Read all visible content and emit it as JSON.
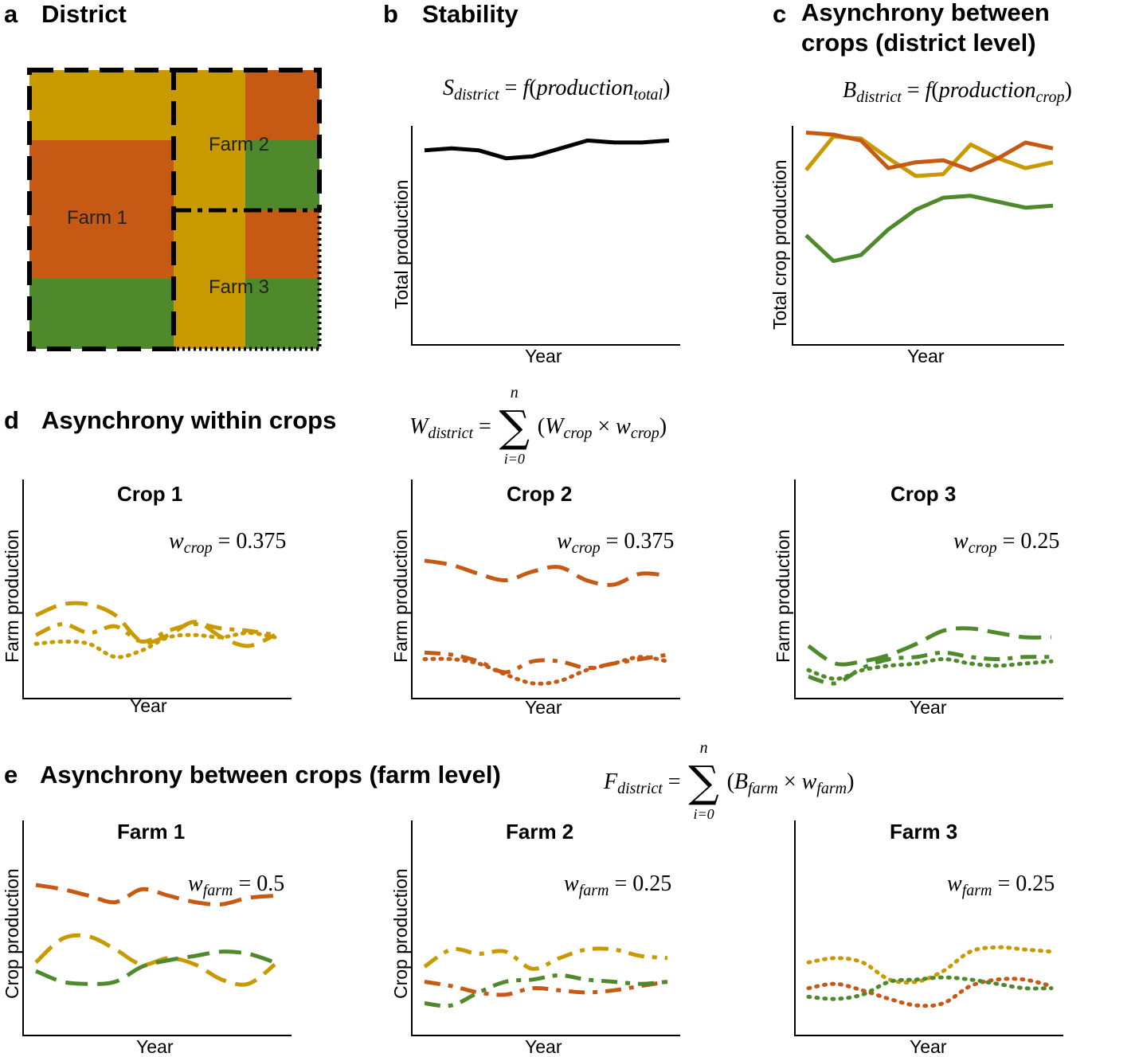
{
  "colors": {
    "crop1": "#C99A00",
    "crop2": "#C65A15",
    "crop3": "#4E8A2C",
    "total": "#000000"
  },
  "panel_a": {
    "letter": "a",
    "title": "District",
    "farms": [
      "Farm 1",
      "Farm 2",
      "Farm 3"
    ]
  },
  "panel_b": {
    "letter": "b",
    "title": "Stability",
    "formula_lhs": "S",
    "formula_lhs_sub": "district",
    "formula_rhs_f": "f",
    "formula_rhs_arg": "production",
    "formula_rhs_arg_sub": "total",
    "xlabel": "Year",
    "ylabel": "Total production"
  },
  "panel_c": {
    "letter": "c",
    "title_line1": "Asynchrony between",
    "title_line2": "crops (district level)",
    "formula_lhs": "B",
    "formula_lhs_sub": "district",
    "formula_rhs_f": "f",
    "formula_rhs_arg": "production",
    "formula_rhs_arg_sub": "crop",
    "xlabel": "Year",
    "ylabel": "Total crop production"
  },
  "panel_d": {
    "letter": "d",
    "title": "Asynchrony within crops",
    "formula_lhs": "W",
    "formula_lhs_sub": "district",
    "sum_top": "n",
    "sum_bottom": "i=0",
    "term_a": "W",
    "term_a_sub": "crop",
    "term_b": "w",
    "term_b_sub": "crop",
    "subplots": [
      {
        "title": "Crop 1",
        "weight_symbol": "w",
        "weight_sub": "crop",
        "weight_value": "0.375",
        "xlabel": "Year",
        "ylabel": "Farm production"
      },
      {
        "title": "Crop 2",
        "weight_symbol": "w",
        "weight_sub": "crop",
        "weight_value": "0.375",
        "xlabel": "Year",
        "ylabel": "Farm production"
      },
      {
        "title": "Crop 3",
        "weight_symbol": "w",
        "weight_sub": "crop",
        "weight_value": "0.25",
        "xlabel": "Year",
        "ylabel": "Farm production"
      }
    ]
  },
  "panel_e": {
    "letter": "e",
    "title": "Asynchrony between crops (farm level)",
    "formula_lhs": "F",
    "formula_lhs_sub": "district",
    "sum_top": "n",
    "sum_bottom": "i=0",
    "term_a": "B",
    "term_a_sub": "farm",
    "term_b": "w",
    "term_b_sub": "farm",
    "subplots": [
      {
        "title": "Farm 1",
        "weight_symbol": "w",
        "weight_sub": "farm",
        "weight_value": "0.5",
        "xlabel": "Year",
        "ylabel": "Crop production"
      },
      {
        "title": "Farm 2",
        "weight_symbol": "w",
        "weight_sub": "farm",
        "weight_value": "0.25",
        "xlabel": "Year",
        "ylabel": "Crop production"
      },
      {
        "title": "Farm 3",
        "weight_symbol": "w",
        "weight_sub": "farm",
        "weight_value": "0.25",
        "xlabel": "Year",
        "ylabel": "Crop production"
      }
    ]
  },
  "chart_data": [
    {
      "type": "line",
      "panel": "b",
      "xlabel": "Year",
      "ylabel": "Total production",
      "ylim": [
        0,
        100
      ],
      "x": [
        1,
        2,
        3,
        4,
        5,
        6,
        7,
        8,
        9,
        10
      ],
      "series": [
        {
          "color": "total",
          "style": "solid",
          "values": [
            90,
            91,
            90,
            86,
            87,
            91,
            95,
            94,
            94,
            95
          ]
        }
      ]
    },
    {
      "type": "line",
      "panel": "c",
      "xlabel": "Year",
      "ylabel": "Total crop production",
      "ylim": [
        0,
        100
      ],
      "x": [
        1,
        2,
        3,
        4,
        5,
        6,
        7,
        8,
        9,
        10
      ],
      "series": [
        {
          "color": "crop1",
          "style": "solid",
          "values": [
            80,
            97,
            96,
            86,
            77,
            78,
            93,
            86,
            81,
            84
          ]
        },
        {
          "color": "crop2",
          "style": "solid",
          "values": [
            99,
            98,
            95,
            81,
            84,
            85,
            80,
            86,
            94,
            91
          ]
        },
        {
          "color": "crop3",
          "style": "solid",
          "values": [
            47,
            34,
            37,
            50,
            60,
            66,
            67,
            64,
            61,
            62
          ]
        }
      ]
    },
    {
      "type": "line",
      "panel": "d1",
      "xlabel": "Year",
      "ylabel": "Farm production",
      "ylim": [
        0,
        100
      ],
      "x": [
        1,
        2,
        3,
        4,
        5,
        6,
        7,
        8,
        9,
        10
      ],
      "series": [
        {
          "color": "crop1",
          "style": "dash-long",
          "values": [
            38,
            43,
            43,
            38,
            26,
            29,
            35,
            28,
            24,
            29
          ]
        },
        {
          "color": "crop1",
          "style": "dash-medium",
          "values": [
            29,
            34,
            30,
            33,
            26,
            31,
            34,
            32,
            31,
            29
          ]
        },
        {
          "color": "crop1",
          "style": "dot",
          "values": [
            25,
            26,
            25,
            19,
            22,
            28,
            29,
            28,
            30,
            28
          ]
        }
      ]
    },
    {
      "type": "line",
      "panel": "d2",
      "xlabel": "Year",
      "ylabel": "Farm production",
      "ylim": [
        0,
        100
      ],
      "x": [
        1,
        2,
        3,
        4,
        5,
        6,
        7,
        8,
        9,
        10
      ],
      "series": [
        {
          "color": "crop2",
          "style": "dash-long",
          "values": [
            63,
            61,
            57,
            54,
            58,
            60,
            54,
            52,
            57,
            56
          ]
        },
        {
          "color": "crop2",
          "style": "dash-medium",
          "values": [
            21,
            20,
            17,
            12,
            17,
            17,
            14,
            16,
            18,
            20
          ]
        },
        {
          "color": "crop2",
          "style": "dot",
          "values": [
            18,
            18,
            16,
            11,
            7,
            8,
            13,
            16,
            19,
            17
          ]
        }
      ]
    },
    {
      "type": "line",
      "panel": "d3",
      "xlabel": "Year",
      "ylabel": "Farm production",
      "ylim": [
        0,
        100
      ],
      "x": [
        1,
        2,
        3,
        4,
        5,
        6,
        7,
        8,
        9,
        10
      ],
      "series": [
        {
          "color": "crop3",
          "style": "dash-long",
          "values": [
            24,
            16,
            17,
            20,
            25,
            31,
            32,
            30,
            28,
            28
          ]
        },
        {
          "color": "crop3",
          "style": "dash-medium",
          "values": [
            10,
            7,
            14,
            18,
            19,
            21,
            19,
            18,
            19,
            19
          ]
        },
        {
          "color": "crop3",
          "style": "dot",
          "values": [
            13,
            9,
            13,
            15,
            16,
            18,
            16,
            15,
            16,
            17
          ]
        }
      ]
    },
    {
      "type": "line",
      "panel": "e1",
      "xlabel": "Year",
      "ylabel": "Crop production",
      "ylim": [
        0,
        100
      ],
      "x": [
        1,
        2,
        3,
        4,
        5,
        6,
        7,
        8,
        9,
        10
      ],
      "series": [
        {
          "color": "crop2",
          "style": "dash-long",
          "values": [
            70,
            68,
            65,
            62,
            68,
            65,
            62,
            61,
            64,
            65
          ]
        },
        {
          "color": "crop1",
          "style": "dash-long",
          "values": [
            34,
            45,
            46,
            40,
            33,
            36,
            33,
            26,
            24,
            33
          ]
        },
        {
          "color": "crop3",
          "style": "dash-long",
          "values": [
            30,
            25,
            24,
            25,
            32,
            35,
            37,
            39,
            38,
            34
          ]
        }
      ]
    },
    {
      "type": "line",
      "panel": "e2",
      "xlabel": "Year",
      "ylabel": "Crop production",
      "ylim": [
        0,
        100
      ],
      "x": [
        1,
        2,
        3,
        4,
        5,
        6,
        7,
        8,
        9,
        10
      ],
      "series": [
        {
          "color": "crop1",
          "style": "dash-medium",
          "values": [
            32,
            40,
            38,
            39,
            31,
            36,
            40,
            40,
            37,
            36
          ]
        },
        {
          "color": "crop2",
          "style": "dash-medium",
          "values": [
            25,
            23,
            20,
            19,
            22,
            21,
            20,
            21,
            23,
            25
          ]
        },
        {
          "color": "crop3",
          "style": "dash-medium",
          "values": [
            15,
            14,
            20,
            25,
            26,
            28,
            26,
            25,
            24,
            25
          ]
        }
      ]
    },
    {
      "type": "line",
      "panel": "e3",
      "xlabel": "Year",
      "ylabel": "Crop production",
      "ylim": [
        0,
        100
      ],
      "x": [
        1,
        2,
        3,
        4,
        5,
        6,
        7,
        8,
        9,
        10
      ],
      "series": [
        {
          "color": "crop1",
          "style": "dot",
          "values": [
            34,
            36,
            34,
            26,
            25,
            30,
            39,
            41,
            40,
            39
          ]
        },
        {
          "color": "crop2",
          "style": "dot",
          "values": [
            22,
            24,
            21,
            17,
            14,
            15,
            23,
            26,
            26,
            23
          ]
        },
        {
          "color": "crop3",
          "style": "dot",
          "values": [
            18,
            17,
            19,
            25,
            26,
            27,
            26,
            24,
            22,
            22
          ]
        }
      ]
    }
  ]
}
